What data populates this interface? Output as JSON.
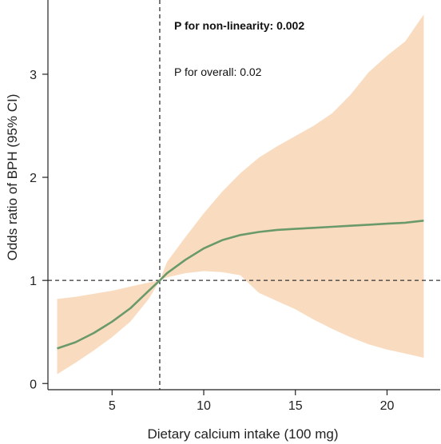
{
  "chart_data": {
    "type": "line",
    "xlabel": "Dietary calcium intake (100 mg)",
    "ylabel": "Odds ratio of BPH (95% CI)",
    "xlim": [
      1.5,
      22.9
    ],
    "ylim": [
      -0.06,
      3.72
    ],
    "x_ticks": [
      5,
      10,
      15,
      20
    ],
    "y_ticks": [
      0,
      1,
      2,
      3
    ],
    "grid": false,
    "reference_lines": {
      "x": 7.6,
      "y": 1
    },
    "annotations": [
      {
        "text": "P for non-linearity: 0.002",
        "bold": true
      },
      {
        "text": "P for overall: 0.02",
        "bold": false
      }
    ],
    "colors": {
      "line": "#6a9a6a",
      "ci_band": "#f9dcc0",
      "reference": "#333333"
    },
    "series": [
      {
        "x": [
          2,
          3,
          4,
          5,
          6,
          7,
          7.6,
          8,
          9,
          10,
          11,
          12,
          13,
          14,
          15,
          16,
          17,
          18,
          19,
          20,
          21,
          22
        ],
        "y": [
          0.34,
          0.4,
          0.49,
          0.6,
          0.73,
          0.9,
          1.0,
          1.07,
          1.2,
          1.31,
          1.39,
          1.44,
          1.47,
          1.49,
          1.5,
          1.51,
          1.52,
          1.53,
          1.54,
          1.55,
          1.56,
          1.58
        ],
        "lower": [
          0.09,
          0.2,
          0.32,
          0.45,
          0.6,
          0.82,
          1.0,
          1.03,
          1.07,
          1.09,
          1.08,
          1.05,
          0.88,
          0.8,
          0.72,
          0.62,
          0.53,
          0.45,
          0.38,
          0.33,
          0.29,
          0.25
        ],
        "upper": [
          0.82,
          0.84,
          0.87,
          0.9,
          0.94,
          0.98,
          1.0,
          1.18,
          1.42,
          1.65,
          1.86,
          2.04,
          2.19,
          2.3,
          2.4,
          2.5,
          2.62,
          2.8,
          3.02,
          3.18,
          3.32,
          3.58
        ]
      }
    ]
  }
}
